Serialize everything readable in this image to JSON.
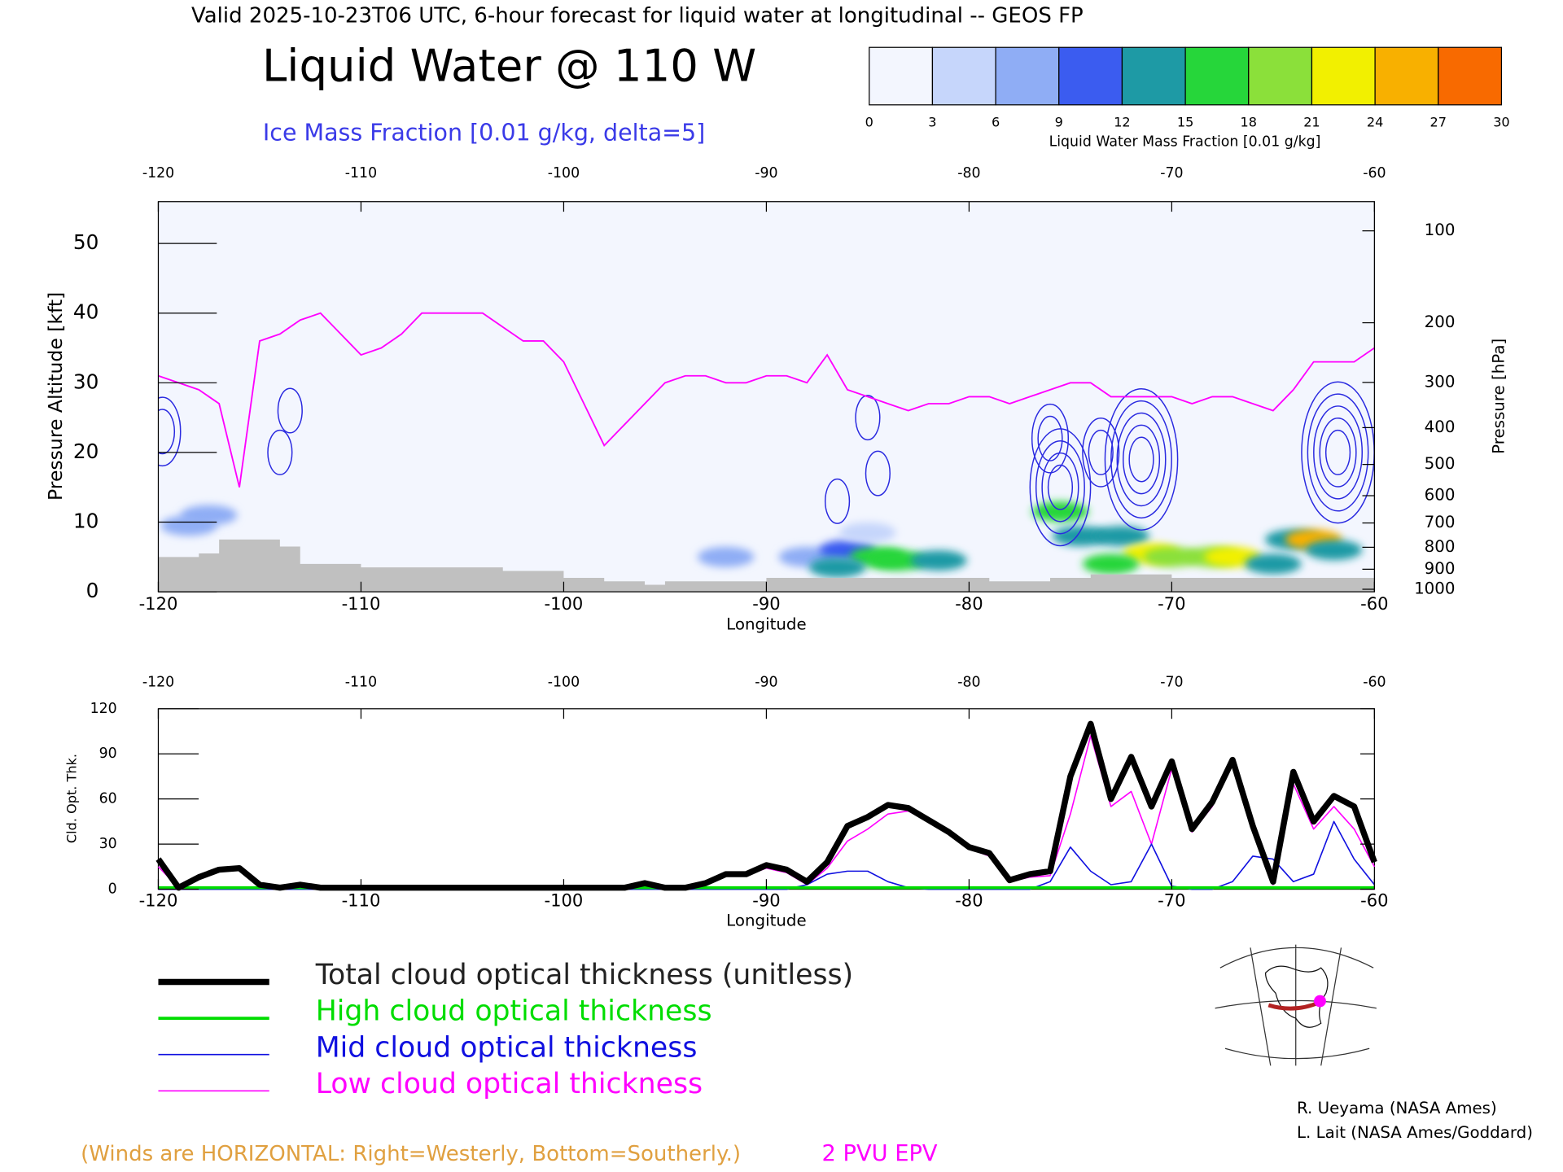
{
  "header": "Valid 2025-10-23T06 UTC, 6-hour forecast for liquid water at longitudinal -- GEOS FP",
  "wind_note": "(Winds are HORIZONTAL: Right=Westerly, Bottom=Southerly.)",
  "credits": [
    "R. Ueyama (NASA Ames)",
    "L. Lait (NASA Ames/Goddard)"
  ],
  "chart_data": [
    {
      "type": "cross-section",
      "title": "Liquid Water @ 110 W",
      "subtitle": "Ice Mass Fraction [0.01 g/kg, delta=5]",
      "xlabel": "Longitude",
      "ylabel": "Pressure Altitude [kft]",
      "y2label": "Pressure [hPa]",
      "xlim": [
        -120,
        -60
      ],
      "xticks": [
        -120,
        -110,
        -100,
        -90,
        -80,
        -70,
        -60
      ],
      "ylim": [
        0,
        56
      ],
      "yticks": [
        0,
        10,
        20,
        30,
        40,
        50
      ],
      "y2scale": "pressure-altitude",
      "y2ticks": [
        100,
        200,
        300,
        400,
        500,
        600,
        700,
        800,
        900,
        1000
      ],
      "colorbar": {
        "label": "Liquid Water Mass Fraction [0.01 g/kg]",
        "ticks": [
          0,
          3,
          6,
          9,
          12,
          15,
          18,
          21,
          24,
          27,
          30
        ],
        "colors": [
          "#f3f6fe",
          "#c6d6fb",
          "#8fadf5",
          "#3b5cf0",
          "#1e9aa5",
          "#26d63a",
          "#8be03a",
          "#f2f000",
          "#f8b000",
          "#f86a00"
        ]
      },
      "cells": {
        "x": [
          -117.5,
          -118.5,
          -92,
          -88,
          -86,
          -84.5,
          -83.5,
          -81.5,
          -85,
          -75.5,
          -74.5,
          -72.5,
          -71,
          -70,
          -68,
          -67,
          -64,
          -63,
          -62,
          -65,
          -73,
          -86.5
        ],
        "y": [
          11,
          9.5,
          5,
          5,
          6,
          5,
          4.5,
          4.5,
          8.5,
          11.5,
          8,
          8,
          5.5,
          5,
          5,
          5,
          7.5,
          7.5,
          6,
          4,
          4,
          3.5
        ],
        "values": [
          6,
          8,
          8,
          6,
          9,
          17,
          15,
          12,
          5,
          15,
          13,
          12,
          21,
          19,
          18,
          22,
          12,
          24,
          13,
          14,
          16,
          14
        ]
      },
      "ice_contours": {
        "x": [
          -119.8,
          -114,
          -113.5,
          -85,
          -84.5,
          -86.5,
          -76,
          -75.5,
          -71.5,
          -73.5,
          -61.8
        ],
        "y": [
          23,
          20,
          26,
          25,
          17,
          13,
          22,
          15,
          19,
          20,
          20
        ],
        "values": [
          10,
          5,
          5,
          5,
          5,
          5,
          10,
          20,
          25,
          10,
          25
        ],
        "delta": 5,
        "color": "#2a2ae0"
      },
      "terrain": {
        "x": [
          -120,
          -118,
          -117,
          -115,
          -114,
          -113,
          -110,
          -103,
          -100,
          -98,
          -96,
          -95,
          -90,
          -85,
          -80,
          -79,
          -76,
          -74,
          -70,
          -60
        ],
        "values": [
          5,
          5.5,
          7.5,
          7.5,
          6.5,
          4,
          3.5,
          3,
          2,
          1.5,
          1,
          1.5,
          2,
          2,
          2,
          1.5,
          2,
          2.5,
          2,
          2
        ],
        "color": "#c0c0c0"
      },
      "series": [
        {
          "name": "2 PVU EPV",
          "color": "#ff00ff",
          "x": [
            -120,
            -118,
            -117,
            -116,
            -115,
            -114,
            -113,
            -112,
            -111,
            -110,
            -109,
            -108,
            -107,
            -106,
            -105,
            -104,
            -103,
            -102,
            -101,
            -100,
            -99,
            -98,
            -97,
            -96,
            -95,
            -94,
            -93,
            -92,
            -91,
            -90,
            -89,
            -88,
            -87,
            -86,
            -85,
            -84,
            -83,
            -82,
            -81,
            -80,
            -79,
            -78,
            -77,
            -76,
            -75,
            -74,
            -73,
            -72,
            -71,
            -70,
            -69,
            -68,
            -67,
            -66,
            -65,
            -64,
            -63,
            -62,
            -61,
            -60
          ],
          "values": [
            31,
            29,
            27,
            15,
            36,
            37,
            39,
            40,
            37,
            34,
            35,
            37,
            40,
            40,
            40,
            40,
            38,
            36,
            36,
            33,
            27,
            21,
            24,
            27,
            30,
            31,
            31,
            30,
            30,
            31,
            31,
            30,
            34,
            29,
            28,
            27,
            26,
            27,
            27,
            28,
            28,
            27,
            28,
            29,
            30,
            30,
            28,
            28,
            28,
            28,
            27,
            28,
            28,
            27,
            26,
            29,
            33,
            33,
            33,
            35
          ]
        }
      ]
    },
    {
      "type": "line",
      "ylabel": "Cld. Opt. Thk.",
      "xlabel": "Longitude",
      "xlim": [
        -120,
        -60
      ],
      "xticks": [
        -120,
        -110,
        -100,
        -90,
        -80,
        -70,
        -60
      ],
      "ylim": [
        0,
        120
      ],
      "yticks": [
        0,
        30,
        60,
        90,
        120
      ],
      "x": [
        -120,
        -119,
        -118,
        -117,
        -116,
        -115,
        -114,
        -113,
        -112,
        -111,
        -110,
        -109,
        -108,
        -107,
        -106,
        -105,
        -104,
        -103,
        -102,
        -101,
        -100,
        -99,
        -98,
        -97,
        -96,
        -95,
        -94,
        -93,
        -92,
        -91,
        -90,
        -89,
        -88,
        -87,
        -86,
        -85,
        -84,
        -83,
        -82,
        -81,
        -80,
        -79,
        -78,
        -77,
        -76,
        -75,
        -74,
        -73,
        -72,
        -71,
        -70,
        -69,
        -68,
        -67,
        -66,
        -65,
        -64,
        -63,
        -62,
        -61,
        -60
      ],
      "series": [
        {
          "name": "Total cloud optical thickness (unitless)",
          "color": "#000000",
          "values": [
            20,
            1,
            8,
            13,
            14,
            3,
            1,
            3,
            1,
            1,
            1,
            1,
            1,
            1,
            1,
            1,
            1,
            1,
            1,
            1,
            1,
            1,
            1,
            1,
            4,
            1,
            1,
            4,
            10,
            10,
            16,
            13,
            5,
            18,
            42,
            48,
            56,
            54,
            46,
            38,
            28,
            24,
            6,
            10,
            12,
            75,
            110,
            60,
            88,
            55,
            85,
            40,
            58,
            86,
            42,
            5,
            78,
            45,
            62,
            55,
            18
          ]
        },
        {
          "name": "High cloud optical thickness",
          "color": "#00dd00",
          "values": [
            1,
            1,
            1,
            1,
            1,
            1,
            1,
            1,
            1,
            1,
            1,
            1,
            1,
            1,
            1,
            1,
            1,
            1,
            1,
            1,
            1,
            1,
            1,
            1,
            1,
            1,
            1,
            1,
            1,
            1,
            1,
            1,
            1,
            1,
            1,
            1,
            1,
            1,
            1,
            1,
            1,
            1,
            1,
            1,
            1,
            1,
            1,
            1,
            1,
            1,
            1,
            1,
            1,
            1,
            1,
            1,
            1,
            1,
            1,
            1,
            1
          ]
        },
        {
          "name": "Mid cloud optical thickness",
          "color": "#1010e0",
          "values": [
            0,
            0,
            0,
            0,
            0,
            0,
            0,
            0,
            0,
            0,
            0,
            0,
            0,
            0,
            0,
            0,
            0,
            0,
            0,
            0,
            0,
            0,
            0,
            0,
            0,
            0,
            0,
            0,
            0,
            0,
            0,
            0,
            3,
            10,
            12,
            12,
            5,
            1,
            0,
            0,
            0,
            0,
            0,
            0,
            5,
            28,
            12,
            3,
            5,
            30,
            2,
            0,
            0,
            5,
            22,
            20,
            5,
            10,
            45,
            20,
            3
          ]
        },
        {
          "name": "Low cloud optical thickness",
          "color": "#ff00ff",
          "values": [
            15,
            1,
            7,
            12,
            13,
            2,
            1,
            2,
            1,
            1,
            1,
            1,
            1,
            1,
            1,
            1,
            1,
            1,
            1,
            1,
            1,
            1,
            1,
            1,
            3,
            1,
            1,
            3,
            9,
            9,
            14,
            11,
            3,
            14,
            32,
            40,
            50,
            52,
            45,
            37,
            27,
            22,
            5,
            8,
            9,
            50,
            102,
            55,
            65,
            30,
            80,
            38,
            55,
            85,
            40,
            3,
            70,
            40,
            55,
            40,
            15
          ]
        }
      ]
    }
  ]
}
